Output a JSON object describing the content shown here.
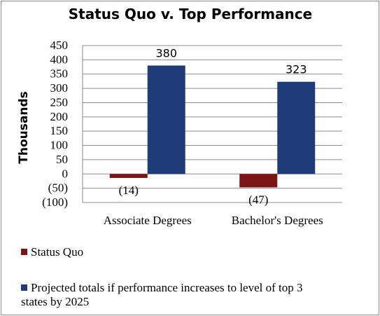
{
  "chart_data": {
    "type": "bar",
    "title": "Status Quo v. Top Performance",
    "ylabel": "Thousands",
    "categories": [
      "Associate Degrees",
      "Bachelor's Degrees"
    ],
    "series": [
      {
        "name": "Status Quo",
        "values": [
          -14,
          -47
        ],
        "labels": [
          "(14)",
          "(47)"
        ],
        "color": "#7b1414"
      },
      {
        "name": "Projected totals if performance increases to level of top 3 states by 2025",
        "values": [
          380,
          323
        ],
        "labels": [
          "380",
          "323"
        ],
        "color": "#1f3c78"
      }
    ],
    "ylim": [
      -100,
      450
    ],
    "yticks": [
      450,
      400,
      350,
      300,
      250,
      200,
      150,
      100,
      50,
      0,
      -50,
      -100
    ],
    "ytick_labels": [
      "450",
      "400",
      "350",
      "300",
      "250",
      "200",
      "150",
      "100",
      "50",
      "0",
      "(50)",
      "(100)"
    ],
    "grid": true,
    "legend_position": "bottom"
  }
}
